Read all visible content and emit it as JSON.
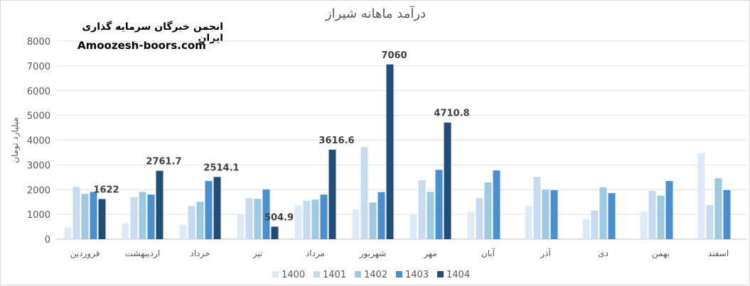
{
  "chart_data": {
    "type": "bar",
    "title": "درآمد ماهانه شیراز",
    "ylabel": "میلیارد تومان",
    "xlabel": "",
    "ylim": [
      0,
      8000
    ],
    "yticks": [
      0,
      1000,
      2000,
      3000,
      4000,
      5000,
      6000,
      7000,
      8000
    ],
    "grid": true,
    "legend_position": "bottom",
    "categories": [
      "فروردین",
      "اردیبهشت",
      "خرداد",
      "تیر",
      "مرداد",
      "شهریور",
      "مهر",
      "آبان",
      "آذر",
      "دی",
      "بهمن",
      "اسفند"
    ],
    "series": [
      {
        "name": "1400",
        "color": "#deebf7",
        "values": [
          470,
          640,
          580,
          1000,
          1370,
          1200,
          1000,
          1110,
          1340,
          820,
          1110,
          3480
        ]
      },
      {
        "name": "1401",
        "color": "#c6dbef",
        "values": [
          2110,
          1700,
          1340,
          1660,
          1550,
          3720,
          2380,
          1660,
          2520,
          1160,
          1950,
          1380
        ]
      },
      {
        "name": "1402",
        "color": "#9ecae1",
        "values": [
          1830,
          1910,
          1510,
          1630,
          1600,
          1480,
          1910,
          2290,
          2000,
          2100,
          1760,
          2460
        ]
      },
      {
        "name": "1403",
        "color": "#4a90d0",
        "values": [
          1910,
          1800,
          2350,
          2010,
          1800,
          1900,
          2800,
          2780,
          1980,
          1860,
          2350,
          1980
        ]
      },
      {
        "name": "1404",
        "color": "#1f4e79",
        "values": [
          1622,
          2761.7,
          2514.1,
          504.9,
          3616.6,
          7060,
          4710.8,
          null,
          null,
          null,
          null,
          null
        ]
      }
    ],
    "data_labels": {
      "series": "1404",
      "values": [
        "1622",
        "2761.7",
        "2514.1",
        "504.9",
        "3616.6",
        "7060",
        "4710.8"
      ]
    }
  },
  "watermark": {
    "line1": "انجمن خبرگان سرمایه گذاری ایران",
    "line2": "Amoozesh-boors.com"
  }
}
